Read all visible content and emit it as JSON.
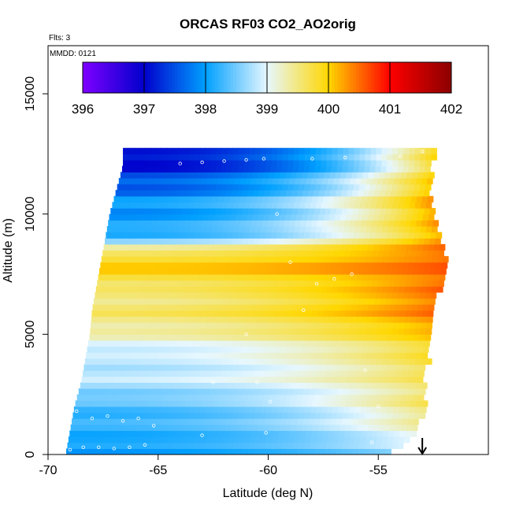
{
  "chart_data": {
    "type": "heatmap",
    "title": "ORCAS RF03 CO2_AO2orig",
    "note_flights": "Flts: 3",
    "note_date": "MMDD: 0121",
    "xlabel": "Latitude (deg N)",
    "ylabel": "Altitude (m)",
    "xlim": [
      -70,
      -50
    ],
    "ylim": [
      0,
      17000
    ],
    "x_ticks": [
      -70,
      -65,
      -60,
      -55
    ],
    "x_tick_labels": [
      "-70",
      "-65",
      "-60",
      "-55"
    ],
    "y_ticks": [
      0,
      5000,
      10000,
      15000
    ],
    "y_tick_labels": [
      "0",
      "5000",
      "10000",
      "15000"
    ],
    "colorbar": {
      "min": 396,
      "max": 402,
      "ticks": [
        396,
        397,
        398,
        399,
        400,
        401,
        402
      ],
      "tick_labels": [
        "396",
        "397",
        "398",
        "399",
        "400",
        "401",
        "402"
      ],
      "colors": [
        "#7f00ff",
        "#0000cc",
        "#00a0ff",
        "#e6f7ff",
        "#ffd700",
        "#ff0000",
        "#8b0000"
      ]
    },
    "arrow_marker_latitude": -53,
    "grid_cell": {
      "dlat": 0.25,
      "dalt": 250
    },
    "domain_edges": {
      "altitudes": [
        0,
        1000,
        2000,
        3000,
        4000,
        5000,
        6000,
        7000,
        8000,
        9000,
        10000,
        11000,
        12000,
        12600
      ],
      "south_edge": [
        -69.2,
        -69.0,
        -68.8,
        -68.5,
        -68.3,
        -68.1,
        -68.0,
        -67.8,
        -67.6,
        -67.4,
        -67.2,
        -66.9,
        -66.6,
        -66.6
      ],
      "north_edge": [
        -54.6,
        -53.3,
        -53.0,
        -53.0,
        -52.8,
        -52.6,
        -52.7,
        -52.2,
        -52.0,
        -52.3,
        -52.6,
        -52.7,
        -52.7,
        -52.5
      ]
    },
    "co2_profile_south": [
      {
        "altitude": 0,
        "co2": 397.9
      },
      {
        "altitude": 1000,
        "co2": 398.1
      },
      {
        "altitude": 2000,
        "co2": 398.4
      },
      {
        "altitude": 3000,
        "co2": 398.7
      },
      {
        "altitude": 4000,
        "co2": 398.8
      },
      {
        "altitude": 5000,
        "co2": 399.3
      },
      {
        "altitude": 6000,
        "co2": 399.5
      },
      {
        "altitude": 7000,
        "co2": 399.6
      },
      {
        "altitude": 7500,
        "co2": 400.0
      },
      {
        "altitude": 8000,
        "co2": 399.9
      },
      {
        "altitude": 8500,
        "co2": 399.5
      },
      {
        "altitude": 9000,
        "co2": 398.3
      },
      {
        "altitude": 9500,
        "co2": 398.2
      },
      {
        "altitude": 10000,
        "co2": 397.9
      },
      {
        "altitude": 10500,
        "co2": 398.0
      },
      {
        "altitude": 11000,
        "co2": 397.5
      },
      {
        "altitude": 11500,
        "co2": 397.6
      },
      {
        "altitude": 12000,
        "co2": 397.1
      }
    ],
    "co2_profile_north": [
      {
        "altitude": 0,
        "co2": 398.5
      },
      {
        "altitude": 1000,
        "co2": 399.2
      },
      {
        "altitude": 2000,
        "co2": 399.7
      },
      {
        "altitude": 3000,
        "co2": 399.5
      },
      {
        "altitude": 4000,
        "co2": 399.8
      },
      {
        "altitude": 5000,
        "co2": 400.1
      },
      {
        "altitude": 6000,
        "co2": 400.4
      },
      {
        "altitude": 7000,
        "co2": 400.6
      },
      {
        "altitude": 8000,
        "co2": 400.5
      },
      {
        "altitude": 9000,
        "co2": 400.3
      },
      {
        "altitude": 10000,
        "co2": 400.3
      },
      {
        "altitude": 11000,
        "co2": 400.1
      },
      {
        "altitude": 12000,
        "co2": 399.9
      }
    ],
    "flight_track": [
      {
        "lat": -69.0,
        "alt": 200
      },
      {
        "lat": -68.7,
        "alt": 1800
      },
      {
        "lat": -68.4,
        "alt": 300
      },
      {
        "lat": -68.0,
        "alt": 1500
      },
      {
        "lat": -67.7,
        "alt": 300
      },
      {
        "lat": -67.3,
        "alt": 1600
      },
      {
        "lat": -67.0,
        "alt": 250
      },
      {
        "lat": -66.6,
        "alt": 1400
      },
      {
        "lat": -66.3,
        "alt": 300
      },
      {
        "lat": -65.9,
        "alt": 1500
      },
      {
        "lat": -65.6,
        "alt": 400
      },
      {
        "lat": -65.2,
        "alt": 1200
      },
      {
        "lat": -64.0,
        "alt": 12100
      },
      {
        "lat": -63.0,
        "alt": 12150
      },
      {
        "lat": -62.0,
        "alt": 12200
      },
      {
        "lat": -61.0,
        "alt": 12250
      },
      {
        "lat": -60.2,
        "alt": 12300
      },
      {
        "lat": -59.6,
        "alt": 10000
      },
      {
        "lat": -59.0,
        "alt": 8000
      },
      {
        "lat": -58.4,
        "alt": 6000
      },
      {
        "lat": -57.8,
        "alt": 7100
      },
      {
        "lat": -57.0,
        "alt": 7300
      },
      {
        "lat": -56.2,
        "alt": 7500
      },
      {
        "lat": -55.6,
        "alt": 3500
      },
      {
        "lat": -55.3,
        "alt": 500
      },
      {
        "lat": -55.0,
        "alt": 2000
      },
      {
        "lat": -54.0,
        "alt": 12400
      },
      {
        "lat": -53.0,
        "alt": 12600
      },
      {
        "lat": -58.0,
        "alt": 12300
      },
      {
        "lat": -56.5,
        "alt": 12350
      },
      {
        "lat": -60.5,
        "alt": 3000
      },
      {
        "lat": -61.0,
        "alt": 5000
      },
      {
        "lat": -62.5,
        "alt": 3000
      },
      {
        "lat": -63.0,
        "alt": 800
      },
      {
        "lat": -60.1,
        "alt": 900
      },
      {
        "lat": -59.9,
        "alt": 2200
      }
    ]
  }
}
